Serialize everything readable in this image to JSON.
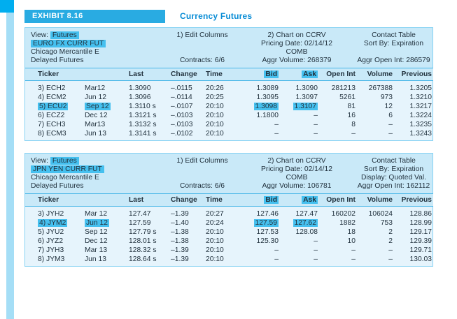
{
  "exhibit": {
    "label": "EXHIBIT 8.16",
    "title": "Currency Futures"
  },
  "colors": {
    "accent_bar": "#29abe2",
    "highlight_chip": "#45c0ef",
    "panel_header_bg": "#c9e9f8",
    "panel_body_bg": "#e6f4fc",
    "title_text": "#0a8dd6"
  },
  "panels": [
    {
      "view_label": "View:",
      "view_value": "Futures",
      "instrument": "EURO FX CURR FUT",
      "exchange": "Chicago Mercantile E",
      "feed": "Delayed Futures",
      "edit_columns": "1) Edit Columns",
      "contracts": "Contracts: 6/6",
      "chart_cmd": "2) Chart on CCRV",
      "pricing_date": "Pricing Date: 02/14/12",
      "comb": "COMB",
      "aggr_volume": "Aggr Volume: 268379",
      "contact_table": "Contact Table",
      "sort_by": "Sort By: Expiration",
      "display_mode": "",
      "aggr_open_int": "Aggr Open Int: 286579",
      "columns": [
        "Ticker",
        "",
        "Last",
        "Change",
        "Time",
        "Bid",
        "Ask",
        "Open Int",
        "Volume",
        "Previous"
      ],
      "rows": [
        {
          "ticker": "3) ECH2",
          "month": "Mar12",
          "last": "1.3090",
          "change": "–.0115",
          "time": "20:26",
          "bid": "1.3089",
          "ask": "1.3090",
          "open_int": "281213",
          "volume": "267388",
          "previous": "1.3205",
          "highlight": false
        },
        {
          "ticker": "4) ECM2",
          "month": "Jun 12",
          "last": "1.3096",
          "change": "–.0114",
          "time": "20:25",
          "bid": "1.3095",
          "ask": "1.3097",
          "open_int": "5261",
          "volume": "973",
          "previous": "1.3210",
          "highlight": false
        },
        {
          "ticker": "5) ECU2",
          "month": "Sep 12",
          "last": "1.3110 s",
          "change": "–.0107",
          "time": "20:10",
          "bid": "1.3098",
          "ask": "1.3107",
          "open_int": "81",
          "volume": "12",
          "previous": "1.3217",
          "highlight": true
        },
        {
          "ticker": "6) ECZ2",
          "month": "Dec 12",
          "last": "1.3121 s",
          "change": "–.0103",
          "time": "20:10",
          "bid": "1.1800",
          "ask": "–",
          "open_int": "16",
          "volume": "6",
          "previous": "1.3224",
          "highlight": false
        },
        {
          "ticker": "7) ECH3",
          "month": "Mar13",
          "last": "1.3132 s",
          "change": "–.0103",
          "time": "20:10",
          "bid": "–",
          "ask": "–",
          "open_int": "8",
          "volume": "–",
          "previous": "1.3235",
          "highlight": false
        },
        {
          "ticker": "8) ECM3",
          "month": "Jun 13",
          "last": "1.3141 s",
          "change": "–.0102",
          "time": "20:10",
          "bid": "–",
          "ask": "–",
          "open_int": "–",
          "volume": "–",
          "previous": "1.3243",
          "highlight": false
        }
      ]
    },
    {
      "view_label": "View:",
      "view_value": "Futures",
      "instrument": "JPN YEN CURR FUT",
      "exchange": "Chicago Mercantile E",
      "feed": "Delayed Futures",
      "edit_columns": "1) Edit Columns",
      "contracts": "Contracts: 6/6",
      "chart_cmd": "2) Chart on CCRV",
      "pricing_date": "Pricing Date: 02/14/12",
      "comb": "COMB",
      "aggr_volume": "Aggr Volume: 106781",
      "contact_table": "Contact Table",
      "sort_by": "Sort By: Expiration",
      "display_mode": "Display: Quoted Val.",
      "aggr_open_int": "Aggr Open Int: 162112",
      "columns": [
        "Ticker",
        "",
        "Last",
        "Change",
        "Time",
        "Bid",
        "Ask",
        "Open Int",
        "Volume",
        "Previous"
      ],
      "rows": [
        {
          "ticker": "3) JYH2",
          "month": "Mar 12",
          "last": "127.47",
          "change": "–1.39",
          "time": "20:27",
          "bid": "127.46",
          "ask": "127.47",
          "open_int": "160202",
          "volume": "106024",
          "previous": "128.86",
          "highlight": false
        },
        {
          "ticker": "4) JYM2",
          "month": "Jun 12",
          "last": "127.59",
          "change": "–1.40",
          "time": "20:24",
          "bid": "127.59",
          "ask": "127.62",
          "open_int": "1882",
          "volume": "753",
          "previous": "128.99",
          "highlight": true
        },
        {
          "ticker": "5) JYU2",
          "month": "Sep 12",
          "last": "127.79 s",
          "change": "–1.38",
          "time": "20:10",
          "bid": "127.53",
          "ask": "128.08",
          "open_int": "18",
          "volume": "2",
          "previous": "129.17",
          "highlight": false
        },
        {
          "ticker": "6) JYZ2",
          "month": "Dec 12",
          "last": "128.01 s",
          "change": "–1.38",
          "time": "20:10",
          "bid": "125.30",
          "ask": "–",
          "open_int": "10",
          "volume": "2",
          "previous": "129.39",
          "highlight": false
        },
        {
          "ticker": "7) JYH3",
          "month": "Mar 13",
          "last": "128.32 s",
          "change": "–1.39",
          "time": "20:10",
          "bid": "–",
          "ask": "–",
          "open_int": "–",
          "volume": "–",
          "previous": "129.71",
          "highlight": false
        },
        {
          "ticker": "8) JYM3",
          "month": "Jun 13",
          "last": "128.64 s",
          "change": "–1.39",
          "time": "20:10",
          "bid": "–",
          "ask": "–",
          "open_int": "–",
          "volume": "–",
          "previous": "130.03",
          "highlight": false
        }
      ]
    }
  ]
}
